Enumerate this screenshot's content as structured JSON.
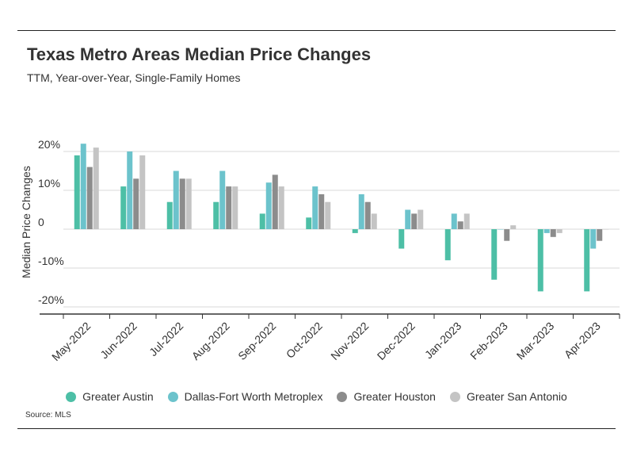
{
  "header": {
    "title": "Texas Metro Areas Median Price Changes",
    "subtitle": "TTM, Year-over-Year, Single-Family Homes"
  },
  "footer": {
    "source": "Source: MLS"
  },
  "colors": {
    "Greater Austin": "#4dbfa6",
    "Dallas-Fort Worth Metroplex": "#6cc3cc",
    "Greater Houston": "#8c8c8c",
    "Greater San Antonio": "#c4c4c4"
  },
  "chart_data": {
    "type": "bar",
    "title": "Texas Metro Areas Median Price Changes",
    "subtitle": "TTM, Year-over-Year, Single-Family Homes",
    "ylabel": "Median Price Changes",
    "xlabel": "",
    "ylim": [
      -22,
      23
    ],
    "yticks": [
      20,
      10,
      0,
      -10,
      -20
    ],
    "ytick_labels": [
      "20%",
      "10%",
      "0",
      "-10%",
      "-20%"
    ],
    "grid": true,
    "legend_position": "bottom",
    "categories": [
      "May-2022",
      "Jun-2022",
      "Jul-2022",
      "Aug-2022",
      "Sep-2022",
      "Oct-2022",
      "Nov-2022",
      "Dec-2022",
      "Jan-2023",
      "Feb-2023",
      "Mar-2023",
      "Apr-2023"
    ],
    "series": [
      {
        "name": "Greater Austin",
        "values": [
          19,
          11,
          7,
          7,
          4,
          3,
          -1,
          -5,
          -8,
          -13,
          -16,
          -16
        ]
      },
      {
        "name": "Dallas-Fort Worth Metroplex",
        "values": [
          22,
          20,
          15,
          15,
          12,
          11,
          9,
          5,
          4,
          0,
          -1,
          -5
        ]
      },
      {
        "name": "Greater Houston",
        "values": [
          16,
          13,
          13,
          11,
          14,
          9,
          7,
          4,
          2,
          -3,
          -2,
          -3
        ]
      },
      {
        "name": "Greater San Antonio",
        "values": [
          21,
          19,
          13,
          11,
          11,
          7,
          4,
          5,
          4,
          1,
          -1,
          0
        ]
      }
    ]
  }
}
